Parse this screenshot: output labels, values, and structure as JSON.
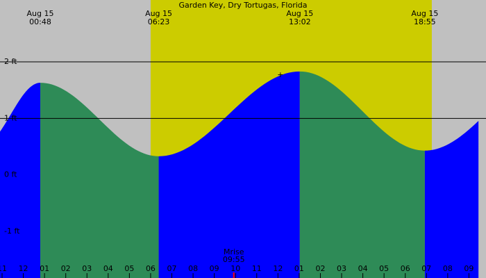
{
  "chart_data": {
    "type": "area",
    "title": "Garden Key, Dry Tortugas, Florida",
    "y_unit": "ft",
    "y_ticks": [
      {
        "value": 2,
        "label": "2 ft"
      },
      {
        "value": 1,
        "label": "1 ft"
      },
      {
        "value": 0,
        "label": "0 ft"
      },
      {
        "value": -1,
        "label": "-1 ft"
      }
    ],
    "ylim": [
      -1.6,
      2.6
    ],
    "x_hour_labels": [
      "11",
      "12",
      "01",
      "02",
      "03",
      "04",
      "05",
      "06",
      "07",
      "08",
      "09",
      "10",
      "11",
      "12",
      "01",
      "02",
      "03",
      "04",
      "05",
      "06",
      "07",
      "08",
      "09"
    ],
    "x_start_hour": 23.0,
    "x_end_hour": 45.15,
    "tide_events": [
      {
        "date": "Aug 15",
        "time": "00:48",
        "hour": 24.8,
        "height_ft": 1.63
      },
      {
        "date": "Aug 15",
        "time": "06:23",
        "hour": 30.38,
        "height_ft": 0.33
      },
      {
        "date": "Aug 15",
        "time": "13:02",
        "hour": 37.03,
        "height_ft": 1.83
      },
      {
        "date": "Aug 15",
        "time": "18:55",
        "hour": 42.92,
        "height_ft": 0.43
      }
    ],
    "boundary_events": [
      {
        "hour": 22.0,
        "height_ft": 0.5
      },
      {
        "hour": 49.0,
        "height_ft": 1.85
      }
    ],
    "daylight": {
      "sunrise_hour": 30.0,
      "sunset_hour": 43.25
    },
    "moonrise": {
      "label": "Mrise",
      "time": "09:55",
      "hour": 33.92
    },
    "reference_lines_ft": [
      2,
      1
    ],
    "colors": {
      "night": "#c0c0c0",
      "day": "#cccc00",
      "rising": "#0000ff",
      "falling": "#2e8b57",
      "line": "#000000",
      "moon_tick": "#ff0000"
    }
  }
}
